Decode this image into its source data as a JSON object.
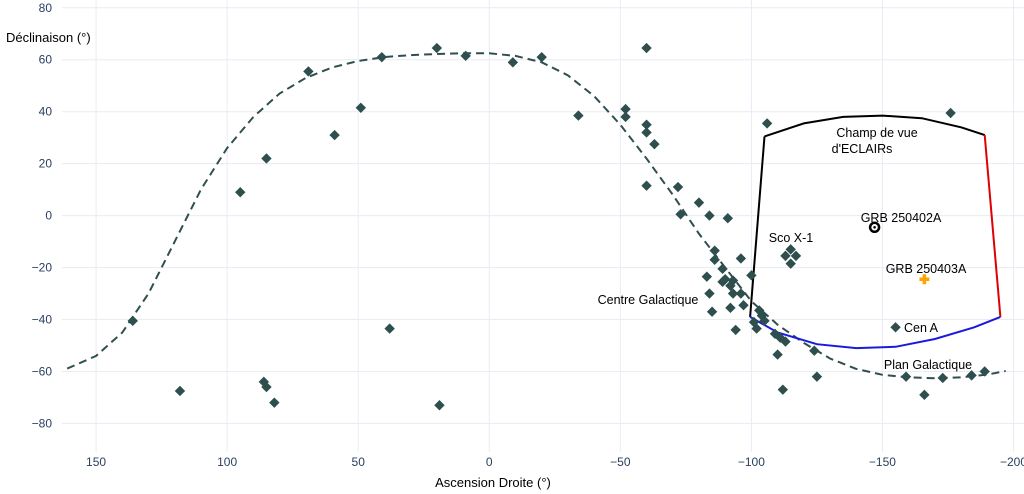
{
  "chart_data": {
    "type": "scatter",
    "title": "",
    "xlabel": "Ascension Droite (°)",
    "ylabel": "Déclinaison (°)",
    "xlim": [
      163,
      -204
    ],
    "ylim": [
      -91,
      83
    ],
    "x_reversed": true,
    "grid": true,
    "xticks": [
      150,
      100,
      50,
      0,
      -50,
      -100,
      -150,
      -200
    ],
    "xtick_labels": [
      "150",
      "100",
      "50",
      "0",
      "−50",
      "−100",
      "−150",
      "−200"
    ],
    "yticks": [
      80,
      60,
      40,
      20,
      0,
      -20,
      -40,
      -60,
      -80
    ],
    "ytick_labels": [
      "80",
      "60",
      "40",
      "20",
      "0",
      "−20",
      "−40",
      "−60",
      "−80"
    ],
    "colors": {
      "sources": "#2f4f4f",
      "galactic_plane": "#2f4f4f",
      "fov_top": "#000000",
      "fov_left": "#000000",
      "fov_right": "#e00000",
      "fov_bottom": "#1a1adc",
      "grb_250403a": "#ffa500",
      "grb_250402a": "#000000"
    },
    "sources": [
      [
        136,
        -40.5
      ],
      [
        118,
        -67.5
      ],
      [
        95,
        9
      ],
      [
        86,
        -64
      ],
      [
        85,
        22
      ],
      [
        85,
        -66
      ],
      [
        82,
        -72
      ],
      [
        69,
        55.5
      ],
      [
        59,
        31
      ],
      [
        49,
        41.5
      ],
      [
        41,
        61
      ],
      [
        38,
        -43.5
      ],
      [
        20,
        64.5
      ],
      [
        19,
        -73
      ],
      [
        9,
        61.5
      ],
      [
        -9,
        59
      ],
      [
        -20,
        61
      ],
      [
        -34,
        38.5
      ],
      [
        -52,
        41
      ],
      [
        -52,
        38
      ],
      [
        -60,
        64.5
      ],
      [
        -60,
        35
      ],
      [
        -60,
        32
      ],
      [
        -60,
        11.5
      ],
      [
        -63,
        27.5
      ],
      [
        -72,
        11
      ],
      [
        -73,
        0.5
      ],
      [
        -80,
        5
      ],
      [
        -83,
        -23.5
      ],
      [
        -84,
        0
      ],
      [
        -84,
        -30
      ],
      [
        -85,
        -37
      ],
      [
        -86,
        -13.5
      ],
      [
        -86,
        -17
      ],
      [
        -89,
        -20.5
      ],
      [
        -89,
        -25.5
      ],
      [
        -90,
        -24.5
      ],
      [
        -91,
        -1
      ],
      [
        -92,
        -27
      ],
      [
        -92,
        -35.5
      ],
      [
        -93,
        -25
      ],
      [
        -93,
        -30
      ],
      [
        -94,
        -44
      ],
      [
        -96,
        -16.5
      ],
      [
        -96,
        -30
      ],
      [
        -97,
        -34.5
      ],
      [
        -100,
        -23
      ],
      [
        -101,
        -41
      ],
      [
        -102,
        -43.5
      ],
      [
        -103,
        -36.5
      ],
      [
        -104,
        -38.5
      ],
      [
        -105,
        -40.5
      ],
      [
        -106,
        35.5
      ],
      [
        -109,
        -45.5
      ],
      [
        -110,
        -53.5
      ],
      [
        -111,
        -47
      ],
      [
        -112,
        -67
      ],
      [
        -113,
        -48.5
      ],
      [
        -113,
        -15.5
      ],
      [
        -115,
        -13
      ],
      [
        -115,
        -18.5
      ],
      [
        -117,
        -15.5
      ],
      [
        -124,
        -52
      ],
      [
        -125,
        -62
      ],
      [
        -155,
        -43
      ],
      [
        -159,
        -62
      ],
      [
        -166,
        -69
      ],
      [
        -173,
        -62.5
      ],
      [
        -176,
        39.5
      ],
      [
        -184,
        -61.5
      ],
      [
        -189,
        -60
      ]
    ],
    "galactic_plane": {
      "name": "Plan Galactique",
      "points": [
        [
          161,
          -58.9
        ],
        [
          150,
          -54
        ],
        [
          140,
          -45
        ],
        [
          130,
          -30
        ],
        [
          120,
          -10
        ],
        [
          110,
          10
        ],
        [
          100,
          26
        ],
        [
          90,
          38
        ],
        [
          80,
          47
        ],
        [
          70,
          53
        ],
        [
          60,
          57
        ],
        [
          50,
          59.5
        ],
        [
          40,
          61
        ],
        [
          30,
          61.8
        ],
        [
          20,
          62.2
        ],
        [
          10,
          62.5
        ],
        [
          0,
          62.5
        ],
        [
          -10,
          61.5
        ],
        [
          -20,
          59
        ],
        [
          -30,
          54
        ],
        [
          -40,
          46
        ],
        [
          -50,
          35
        ],
        [
          -60,
          22
        ],
        [
          -70,
          8
        ],
        [
          -80,
          -7
        ],
        [
          -90,
          -20
        ],
        [
          -100,
          -33
        ],
        [
          -110,
          -42
        ],
        [
          -120,
          -49
        ],
        [
          -130,
          -55
        ],
        [
          -140,
          -59
        ],
        [
          -150,
          -61.3
        ],
        [
          -160,
          -62.3
        ],
        [
          -170,
          -62.6
        ],
        [
          -180,
          -62.3
        ],
        [
          -190,
          -61.2
        ],
        [
          -197,
          -59.8
        ]
      ]
    },
    "fov": {
      "label_line1": "Champ de vue",
      "label_line2": "d'ECLAIRs",
      "top": [
        [
          -105,
          30.5
        ],
        [
          -120,
          35.5
        ],
        [
          -135,
          38
        ],
        [
          -150,
          38.5
        ],
        [
          -165,
          37.5
        ],
        [
          -180,
          34
        ],
        [
          -189,
          31
        ]
      ],
      "left": [
        [
          -105,
          30.5
        ],
        [
          -99.5,
          -39
        ]
      ],
      "right": [
        [
          -189,
          31
        ],
        [
          -195,
          -39
        ]
      ],
      "bottom": [
        [
          -99.5,
          -39
        ],
        [
          -110,
          -45
        ],
        [
          -125,
          -49.5
        ],
        [
          -140,
          -51
        ],
        [
          -155,
          -50.5
        ],
        [
          -170,
          -47.5
        ],
        [
          -185,
          -43
        ],
        [
          -195,
          -39
        ]
      ]
    },
    "grb_250402a": {
      "label": "GRB 250402A",
      "ra": -147,
      "dec": -4.5
    },
    "grb_250403a": {
      "label": "GRB 250403A",
      "ra": -166,
      "dec": -24.5
    },
    "annotations": {
      "centre_galactique": "Centre Galactique",
      "sco_x1": "Sco X-1",
      "cen_a": "Cen A",
      "plan_galactique": "Plan Galactique"
    }
  }
}
